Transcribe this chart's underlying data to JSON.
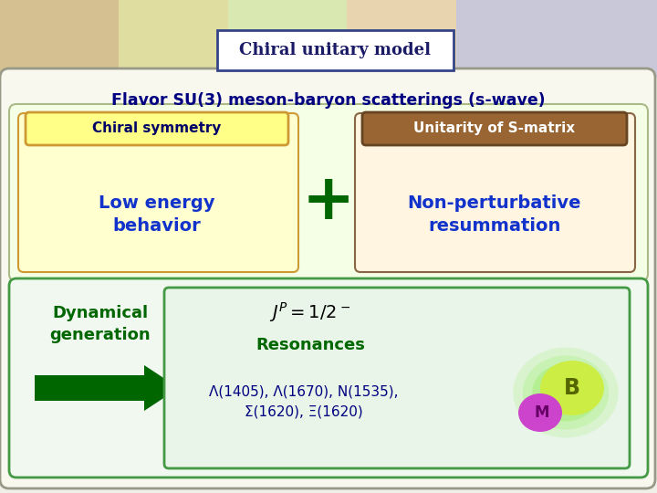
{
  "title": "Chiral unitary model",
  "flavor_text": "Flavor SU(3) meson-baryon scatterings (s-wave)",
  "box1_header": "Chiral symmetry",
  "box1_body": "Low energy\nbehavior",
  "box2_header": "Unitarity of S-matrix",
  "box2_body": "Non-perturbative\nresummation",
  "plus_symbol": "+",
  "dyn_gen": "Dynamical\ngeneration",
  "resonances_title": "Resonances",
  "resonances_list": "Λ(1405), Λ(1670), N(1535),\nΣ(1620), Ξ(1620)",
  "bg_top_color": "#e8d5b0",
  "bg_main_color": "#f0f0e8",
  "outer_box_fill": "#f8f8ee",
  "outer_box_edge": "#999988",
  "upper_section_fill": "#f5ffe5",
  "upper_section_edge": "#aabb88",
  "box1_header_fill": "#ffff88",
  "box1_header_edge": "#cc9933",
  "box1_fill": "#fffff0",
  "box2_header_fill": "#996633",
  "box2_fill": "#fff5e8",
  "lower_section_fill": "#f0f8f0",
  "lower_section_edge": "#449944",
  "res_box_fill": "#e8f5e8",
  "res_box_edge": "#449944",
  "title_bg": "#ffffff",
  "title_border": "#334488",
  "flavor_color": "#000080",
  "box1_body_color": "#1133cc",
  "box2_body_color": "#1133cc",
  "box2_header_text": "#ffffff",
  "plus_color": "#006600",
  "dyn_color": "#006600",
  "arrow_color": "#006600",
  "resonances_title_color": "#006600",
  "resonances_list_color": "#000080",
  "jp_color": "#000000",
  "ball_B_fill": "#ccee44",
  "ball_M_fill": "#cc44cc",
  "glow_color": "#88ee44"
}
